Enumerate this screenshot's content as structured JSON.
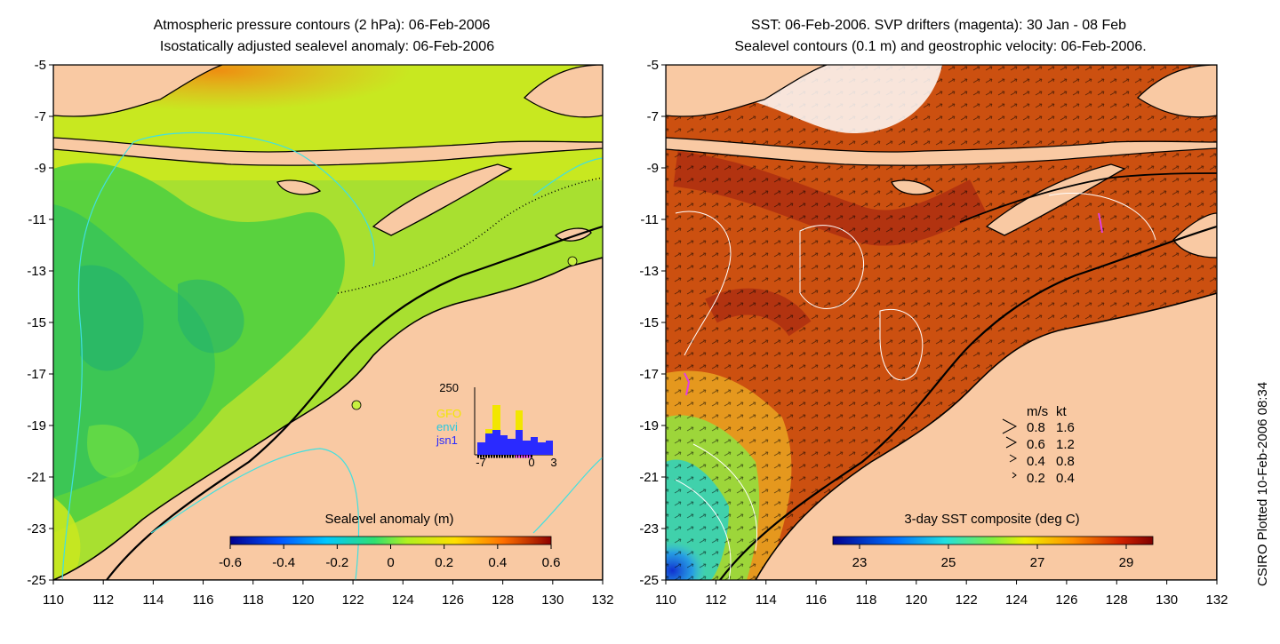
{
  "left_panel": {
    "title_line1": "Atmospheric pressure contours (2 hPa): 06-Feb-2006",
    "title_line2": "Isostatically adjusted sealevel anomaly: 06-Feb-2006",
    "colorbar_title": "Sealevel anomaly (m)",
    "colorbar_ticks": [
      "-0.6",
      "-0.4",
      "-0.2",
      "0",
      "0.2",
      "0.4",
      "0.6"
    ],
    "y_ticks": [
      "-5",
      "-7",
      "-9",
      "-11",
      "-13",
      "-15",
      "-17",
      "-19",
      "-21",
      "-23",
      "-25"
    ],
    "x_ticks": [
      "110",
      "112",
      "114",
      "116",
      "118",
      "120",
      "122",
      "124",
      "126",
      "128",
      "130",
      "132"
    ],
    "histogram": {
      "y_max_label": "250",
      "x_labels": [
        "-7",
        "0",
        "3"
      ],
      "legend": [
        {
          "label": "GFO",
          "color": "#f2e600"
        },
        {
          "label": "envi",
          "color": "#25c8e0"
        },
        {
          "label": "jsn1",
          "color": "#2a2aff"
        }
      ]
    }
  },
  "right_panel": {
    "title_line1": "SST: 06-Feb-2006. SVP drifters (magenta): 30 Jan - 08 Feb",
    "title_line2": "Sealevel contours (0.1 m) and geostrophic velocity: 06-Feb-2006.",
    "colorbar_title": "3-day SST composite (deg C)",
    "colorbar_ticks": [
      "23",
      "25",
      "27",
      "29"
    ],
    "y_ticks": [
      "-5",
      "-7",
      "-9",
      "-11",
      "-13",
      "-15",
      "-17",
      "-19",
      "-21",
      "-23",
      "-25"
    ],
    "x_ticks": [
      "110",
      "112",
      "114",
      "116",
      "118",
      "120",
      "122",
      "124",
      "126",
      "128",
      "130",
      "132"
    ],
    "velocity_legend": {
      "header_ms": "m/s",
      "header_kt": "kt",
      "rows": [
        {
          "ms": "0.8",
          "kt": "1.6"
        },
        {
          "ms": "0.6",
          "kt": "1.2"
        },
        {
          "ms": "0.4",
          "kt": "0.8"
        },
        {
          "ms": "0.2",
          "kt": "0.4"
        }
      ]
    }
  },
  "side_label": "CSIRO Plotted 10-Feb-2006 08:34",
  "colors": {
    "land": "#f9c9a3",
    "coastline": "#000000",
    "pressure_contour": "#40e0e0",
    "sealevel_contour": "#ffffff",
    "drifter": "#e040e0"
  }
}
